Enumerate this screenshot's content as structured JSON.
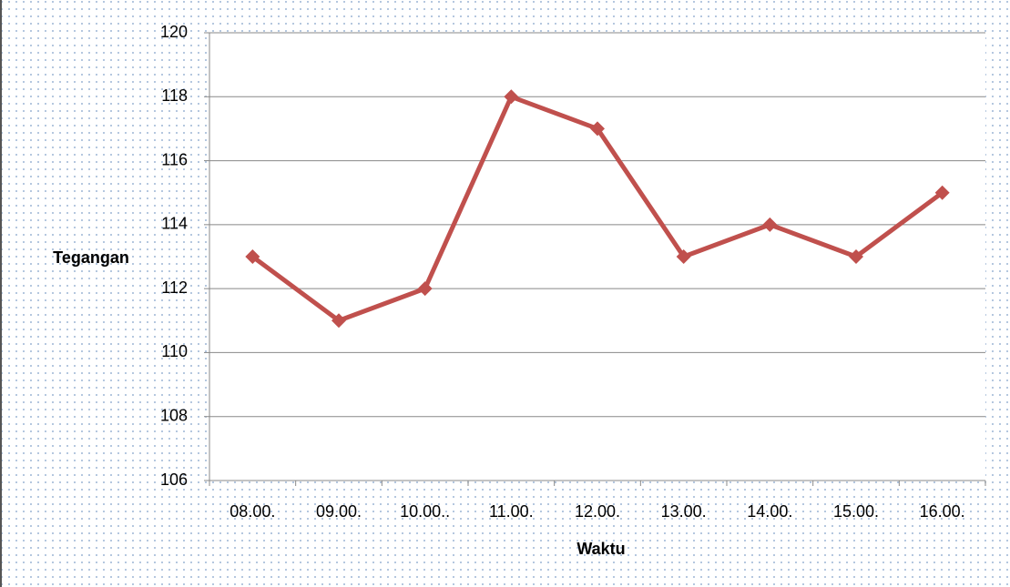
{
  "chart_data": {
    "type": "line",
    "categories": [
      "08.00.",
      "09.00.",
      "10.00..",
      "11.00.",
      "12.00.",
      "13.00.",
      "14.00.",
      "15.00.",
      "16.00."
    ],
    "values": [
      113,
      111,
      112,
      118,
      117,
      113,
      114,
      113,
      115
    ],
    "color": "#c0504d",
    "xlabel": "Waktu",
    "ylabel": "Tegangan",
    "ylim": [
      106,
      120
    ],
    "yticks": [
      106,
      108,
      110,
      112,
      114,
      116,
      118,
      120
    ],
    "grid": true
  }
}
